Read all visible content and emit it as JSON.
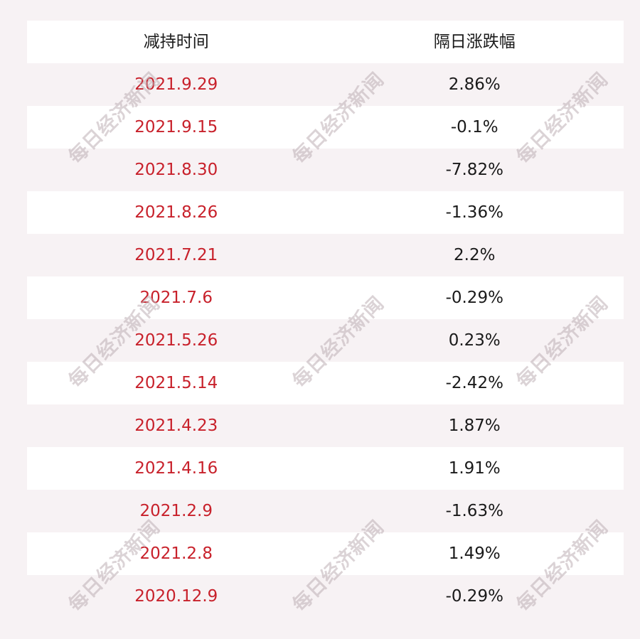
{
  "table": {
    "headers": [
      "减持时间",
      "隔日涨跌幅"
    ],
    "rows": [
      {
        "date": "2021.9.29",
        "change": "2.86%"
      },
      {
        "date": "2021.9.15",
        "change": "-0.1%"
      },
      {
        "date": "2021.8.30",
        "change": "-7.82%"
      },
      {
        "date": "2021.8.26",
        "change": "-1.36%"
      },
      {
        "date": "2021.7.21",
        "change": "2.2%"
      },
      {
        "date": "2021.7.6",
        "change": "-0.29%"
      },
      {
        "date": "2021.5.26",
        "change": "0.23%"
      },
      {
        "date": "2021.5.14",
        "change": "-2.42%"
      },
      {
        "date": "2021.4.23",
        "change": "1.87%"
      },
      {
        "date": "2021.4.16",
        "change": "1.91%"
      },
      {
        "date": "2021.2.9",
        "change": "-1.63%"
      },
      {
        "date": "2021.2.8",
        "change": "1.49%"
      },
      {
        "date": "2020.12.9",
        "change": "-0.29%"
      }
    ]
  },
  "watermark": "每日经济新闻",
  "colors": {
    "date_text": "#c8212b",
    "value_text": "#1a1a1a",
    "row_light": "#ffffff",
    "row_tinted": "#f7f2f4"
  }
}
